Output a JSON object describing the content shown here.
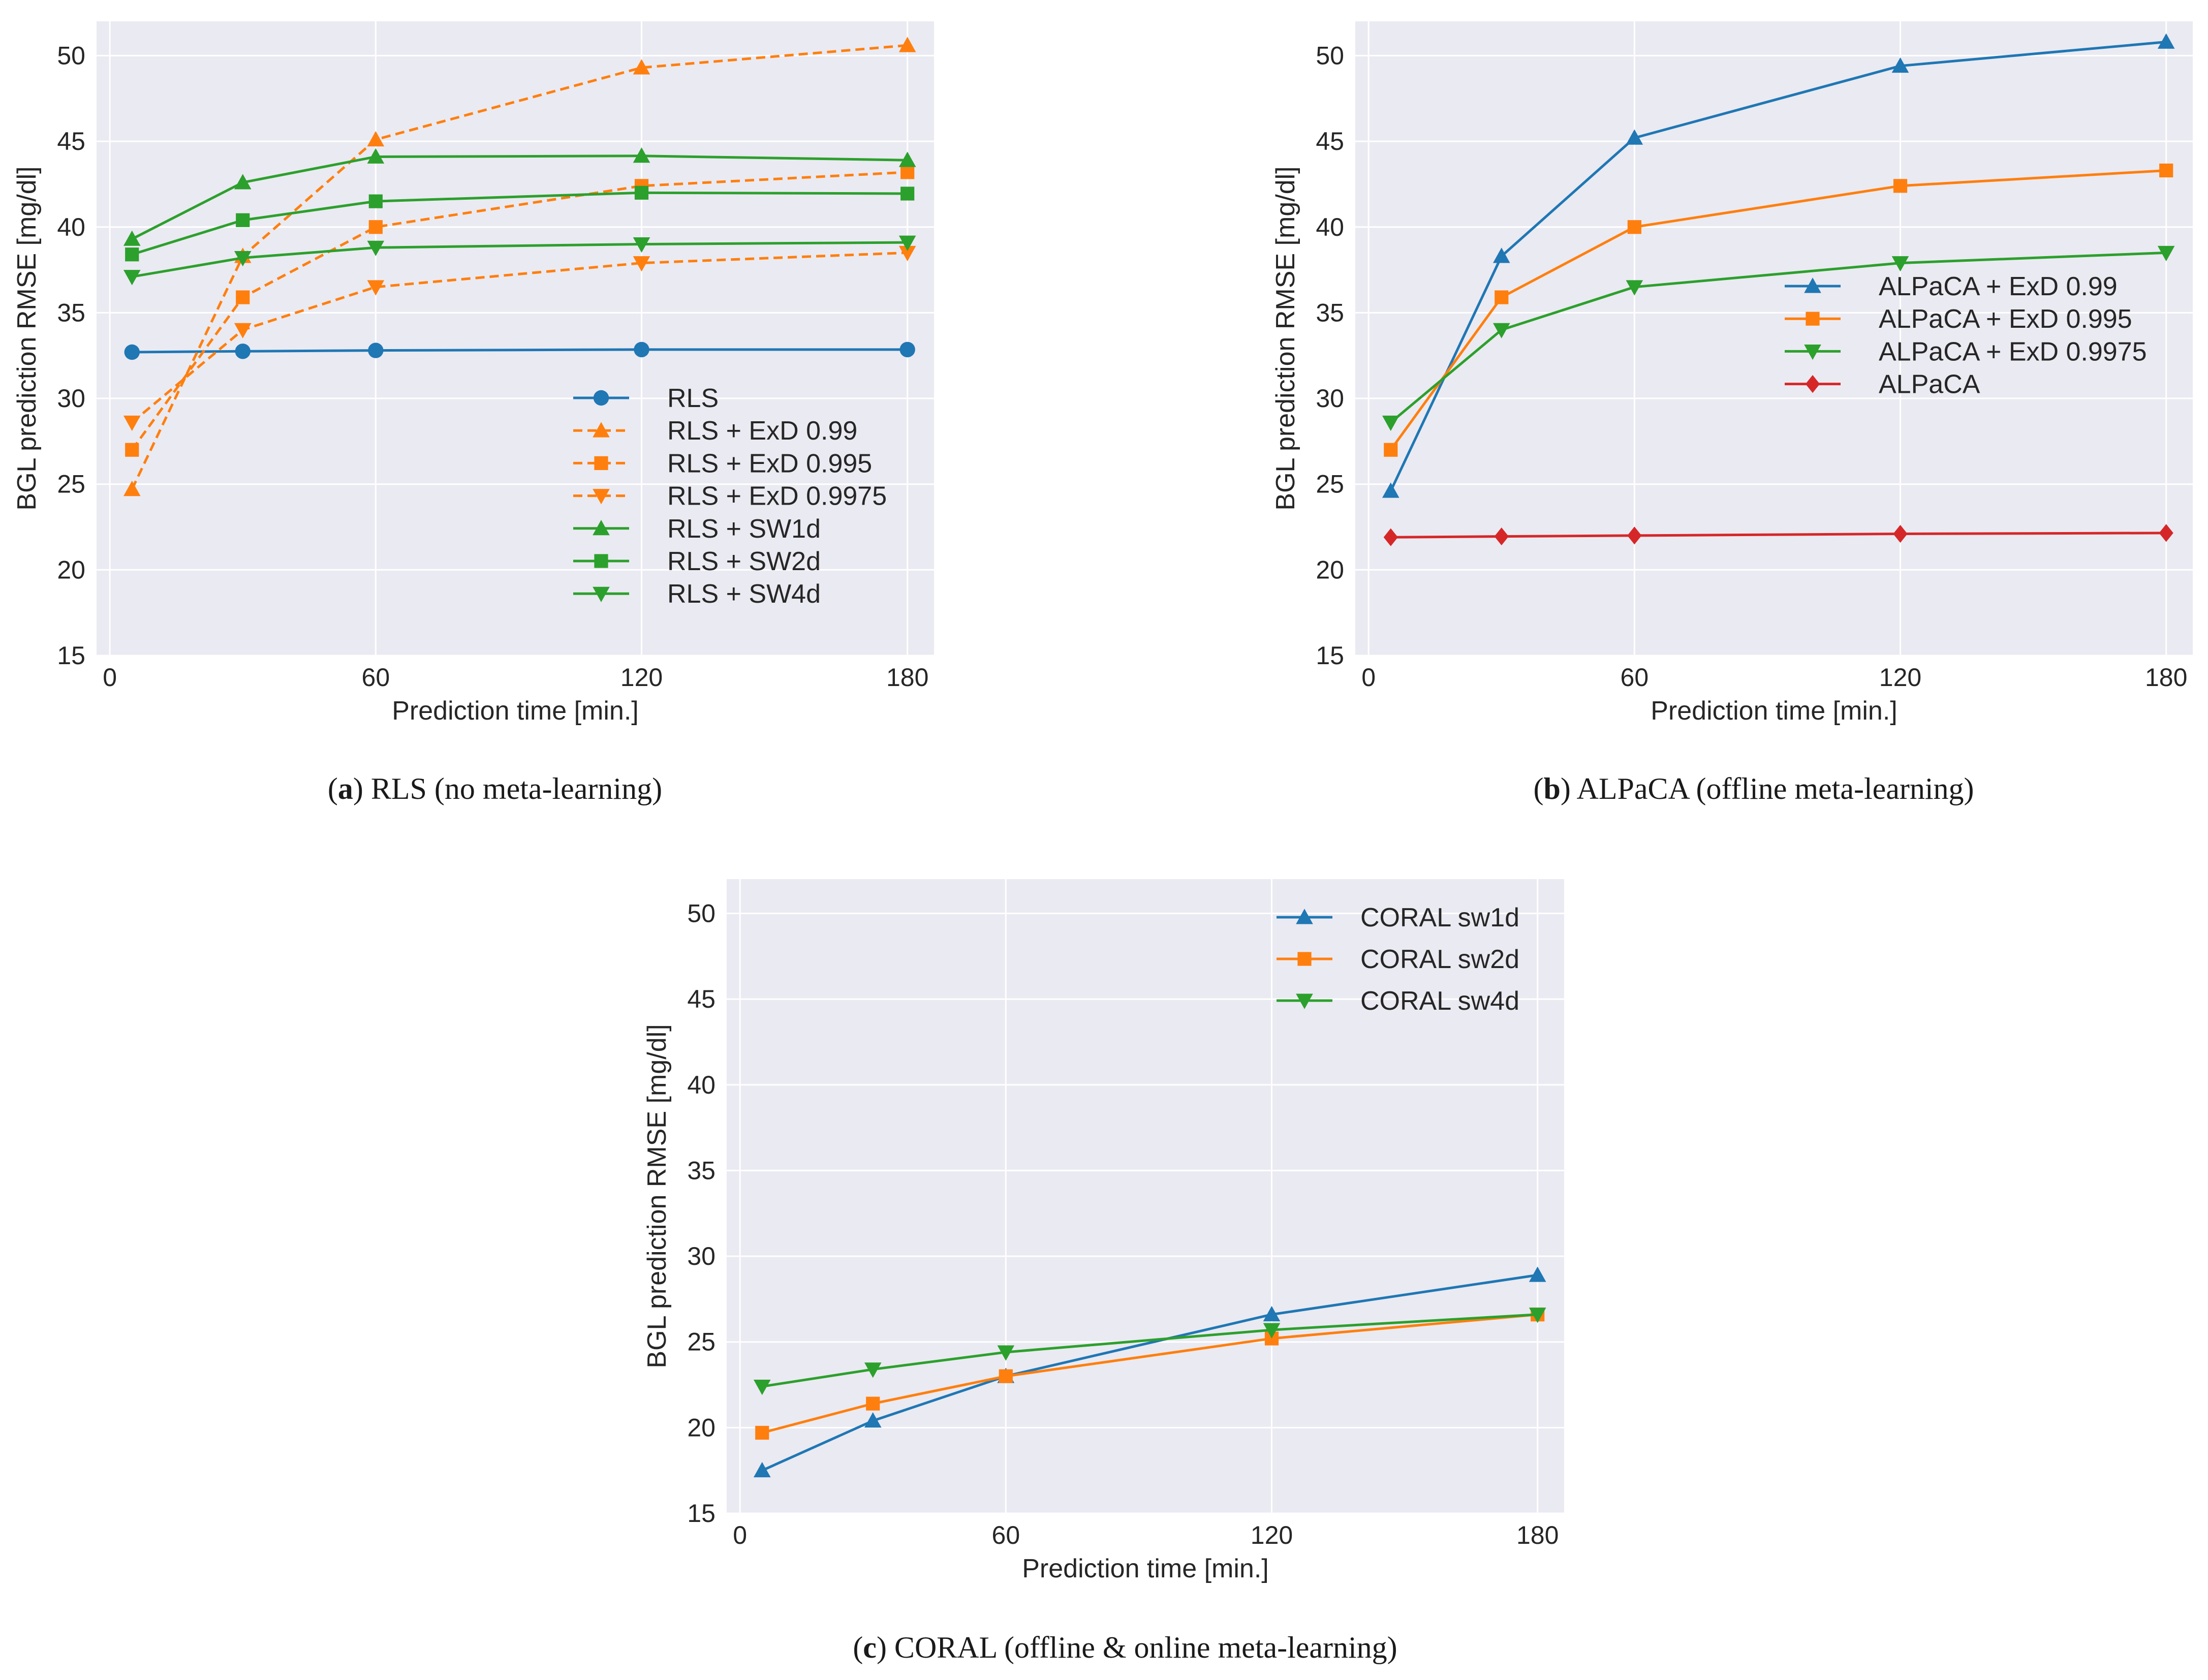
{
  "figure": {
    "colors": {
      "background": "#eaeaf2",
      "grid": "#ffffff",
      "text": "#262626",
      "blue": "#1f77b4",
      "orange": "#ff7f0e",
      "green": "#2ca02c",
      "red": "#d62728"
    }
  },
  "chart_data": [
    {
      "id": "a",
      "type": "line",
      "caption_letter": "a",
      "caption_text": "RLS (no meta-learning)",
      "xlabel": "Prediction time [min.]",
      "ylabel": "BGL prediction RMSE [mg/dl]",
      "xlim": [
        -3,
        186
      ],
      "ylim": [
        15,
        52
      ],
      "xticks": [
        0,
        60,
        120,
        180
      ],
      "yticks": [
        15,
        20,
        25,
        30,
        35,
        40,
        45,
        50
      ],
      "grid": true,
      "legend_position": "lower-right",
      "x": [
        5,
        30,
        60,
        120,
        180
      ],
      "series": [
        {
          "name": "RLS",
          "color": "blue",
          "marker": "circle",
          "dashed": false,
          "values": [
            32.7,
            32.75,
            32.8,
            32.85,
            32.85
          ]
        },
        {
          "name": "RLS + ExD 0.99",
          "color": "orange",
          "marker": "triangle-up",
          "dashed": true,
          "values": [
            24.7,
            38.3,
            45.1,
            49.3,
            50.6
          ]
        },
        {
          "name": "RLS + ExD 0.995",
          "color": "orange",
          "marker": "square",
          "dashed": true,
          "values": [
            27.0,
            35.9,
            40.0,
            42.4,
            43.2
          ]
        },
        {
          "name": "RLS + ExD 0.9975",
          "color": "orange",
          "marker": "triangle-down",
          "dashed": true,
          "values": [
            28.6,
            34.0,
            36.5,
            37.9,
            38.5
          ]
        },
        {
          "name": "RLS + SW1d",
          "color": "green",
          "marker": "triangle-up",
          "dashed": false,
          "values": [
            39.3,
            42.6,
            44.1,
            44.15,
            43.9
          ]
        },
        {
          "name": "RLS + SW2d",
          "color": "green",
          "marker": "square",
          "dashed": false,
          "values": [
            38.4,
            40.4,
            41.5,
            42.0,
            41.95
          ]
        },
        {
          "name": "RLS + SW4d",
          "color": "green",
          "marker": "triangle-down",
          "dashed": false,
          "values": [
            37.1,
            38.2,
            38.8,
            39.0,
            39.1
          ]
        }
      ]
    },
    {
      "id": "b",
      "type": "line",
      "caption_letter": "b",
      "caption_text": "ALPaCA (offline meta-learning)",
      "xlabel": "Prediction time [min.]",
      "ylabel": "BGL prediction RMSE [mg/dl]",
      "xlim": [
        -3,
        186
      ],
      "ylim": [
        15,
        52
      ],
      "xticks": [
        0,
        60,
        120,
        180
      ],
      "yticks": [
        15,
        20,
        25,
        30,
        35,
        40,
        45,
        50
      ],
      "grid": true,
      "legend_position": "center-right",
      "x": [
        5,
        30,
        60,
        120,
        180
      ],
      "series": [
        {
          "name": "ALPaCA + ExD 0.99",
          "color": "blue",
          "marker": "triangle-up",
          "dashed": false,
          "values": [
            24.6,
            38.3,
            45.2,
            49.4,
            50.8
          ]
        },
        {
          "name": "ALPaCA + ExD 0.995",
          "color": "orange",
          "marker": "square",
          "dashed": false,
          "values": [
            27.0,
            35.9,
            40.0,
            42.4,
            43.3
          ]
        },
        {
          "name": "ALPaCA + ExD 0.9975",
          "color": "green",
          "marker": "triangle-down",
          "dashed": false,
          "values": [
            28.6,
            34.0,
            36.5,
            37.9,
            38.5
          ]
        },
        {
          "name": "ALPaCA",
          "color": "red",
          "marker": "diamond",
          "dashed": false,
          "values": [
            21.9,
            21.95,
            22.0,
            22.1,
            22.15
          ]
        }
      ]
    },
    {
      "id": "c",
      "type": "line",
      "caption_letter": "c",
      "caption_text": "CORAL (offline & online meta-learning)",
      "xlabel": "Prediction time [min.]",
      "ylabel": "BGL prediction RMSE [mg/dl]",
      "xlim": [
        -3,
        186
      ],
      "ylim": [
        15,
        52
      ],
      "xticks": [
        0,
        60,
        120,
        180
      ],
      "yticks": [
        15,
        20,
        25,
        30,
        35,
        40,
        45,
        50
      ],
      "grid": true,
      "legend_position": "top-right",
      "x": [
        5,
        30,
        60,
        120,
        180
      ],
      "series": [
        {
          "name": "CORAL sw1d",
          "color": "blue",
          "marker": "triangle-up",
          "dashed": false,
          "values": [
            17.5,
            20.4,
            23.0,
            26.6,
            28.9
          ]
        },
        {
          "name": "CORAL sw2d",
          "color": "orange",
          "marker": "square",
          "dashed": false,
          "values": [
            19.7,
            21.4,
            23.0,
            25.2,
            26.6
          ]
        },
        {
          "name": "CORAL sw4d",
          "color": "green",
          "marker": "triangle-down",
          "dashed": false,
          "values": [
            22.4,
            23.4,
            24.4,
            25.7,
            26.6
          ]
        }
      ]
    }
  ]
}
